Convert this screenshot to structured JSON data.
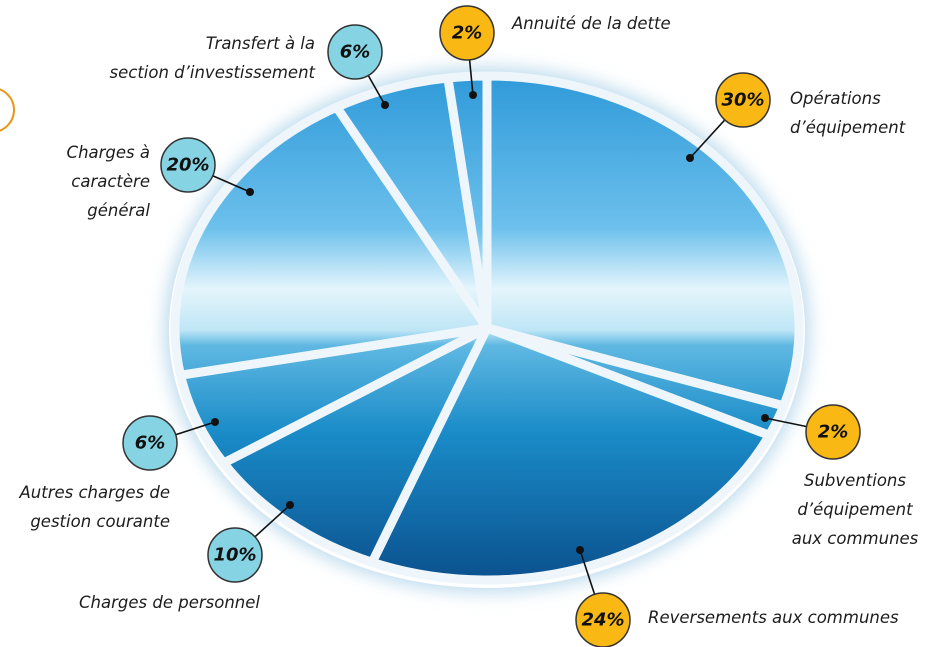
{
  "chart_data": {
    "type": "pie",
    "categories": [
      "Opérations\nd’équipement",
      "Subventions\nd’équipement\naux communes",
      "Reversements aux communes",
      "Charges de personnel",
      "Autres charges de\ngestion courante",
      "Charges à\ncaractère\ngénéral",
      "Transfert à la\nsection d’investissement",
      "Annuité de la dette"
    ],
    "values": [
      30,
      2,
      24,
      10,
      6,
      20,
      6,
      2
    ],
    "value_labels": [
      "30%",
      "2%",
      "24%",
      "10%",
      "6%",
      "20%",
      "6%",
      "2%"
    ],
    "colors": [
      "#f9b814",
      "#f9b814",
      "#f9b814",
      "#86d3e3",
      "#86d3e3",
      "#86d3e3",
      "#86d3e3",
      "#f9b814"
    ]
  }
}
